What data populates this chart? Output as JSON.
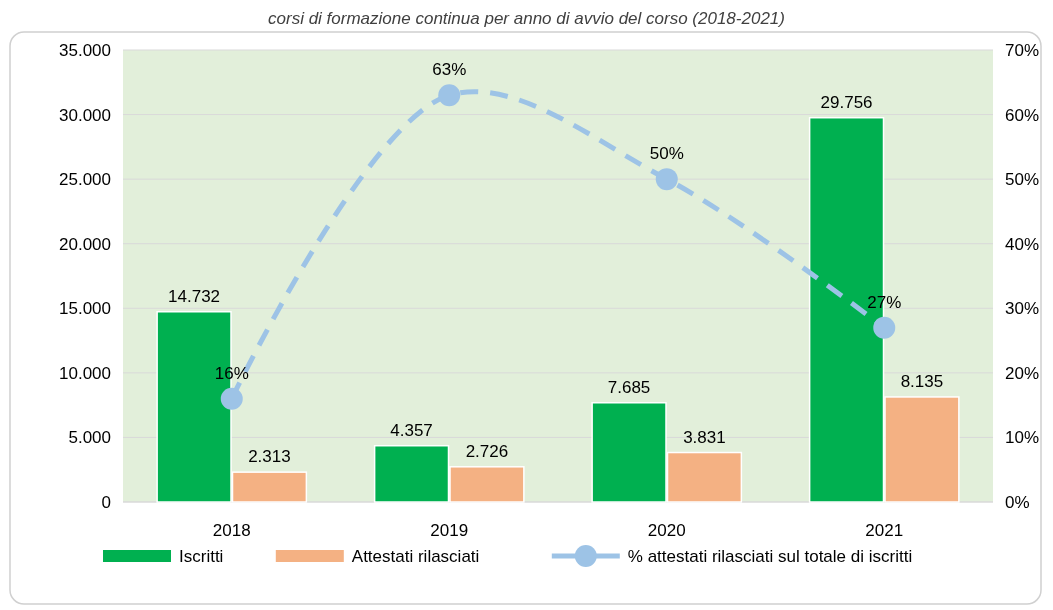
{
  "chart_data": {
    "type": "bar",
    "title": "corsi di formazione continua per anno di avvio del corso (2018-2021)",
    "categories": [
      "2018",
      "2019",
      "2020",
      "2021"
    ],
    "series": [
      {
        "name": "Iscritti",
        "color": "#00b050",
        "values": [
          14732,
          4357,
          7685,
          29756
        ],
        "value_labels": [
          "14.732",
          "4.357",
          "7.685",
          "29.756"
        ]
      },
      {
        "name": "Attestati rilasciati",
        "color": "#f4b183",
        "values": [
          2313,
          2726,
          3831,
          8135
        ],
        "value_labels": [
          "2.313",
          "2.726",
          "3.831",
          "8.135"
        ]
      },
      {
        "name": "% attestati rilasciati sul totale di iscritti",
        "type": "line",
        "axis": "y2",
        "color": "#9dc3e6",
        "line_style": "dashed",
        "marker": "circle",
        "values": [
          16,
          63,
          50,
          27
        ],
        "value_labels": [
          "16%",
          "63%",
          "50%",
          "27%"
        ]
      }
    ],
    "ylim": [
      0,
      35000
    ],
    "yticks": [
      {
        "value": 0,
        "label": "0"
      },
      {
        "value": 5000,
        "label": "5.000"
      },
      {
        "value": 10000,
        "label": "10.000"
      },
      {
        "value": 15000,
        "label": "15.000"
      },
      {
        "value": 20000,
        "label": "20.000"
      },
      {
        "value": 25000,
        "label": "25.000"
      },
      {
        "value": 30000,
        "label": "30.000"
      },
      {
        "value": 35000,
        "label": "35.000"
      }
    ],
    "y2lim": [
      0,
      70
    ],
    "y2ticks": [
      {
        "value": 0,
        "label": "0%"
      },
      {
        "value": 10,
        "label": "10%"
      },
      {
        "value": 20,
        "label": "20%"
      },
      {
        "value": 30,
        "label": "30%"
      },
      {
        "value": 40,
        "label": "40%"
      },
      {
        "value": 50,
        "label": "50%"
      },
      {
        "value": 60,
        "label": "60%"
      },
      {
        "value": 70,
        "label": "70%"
      }
    ],
    "grid": "y",
    "legend": "bottom"
  }
}
